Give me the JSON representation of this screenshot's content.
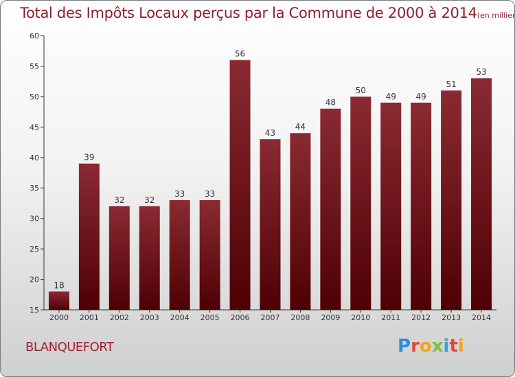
{
  "chart_data": {
    "type": "bar",
    "title": "Total des Impôts Locaux perçus par la Commune de 2000 à 2014",
    "title_unit": "(en milliers d'€)",
    "categories": [
      "2000",
      "2001",
      "2002",
      "2003",
      "2004",
      "2005",
      "2006",
      "2007",
      "2008",
      "2009",
      "2010",
      "2011",
      "2012",
      "2013",
      "2014"
    ],
    "values": [
      18,
      39,
      32,
      32,
      33,
      33,
      56,
      43,
      44,
      48,
      50,
      49,
      49,
      51,
      53
    ],
    "ylim": [
      15,
      60
    ],
    "yticks": [
      15,
      20,
      25,
      30,
      35,
      40,
      45,
      50,
      55,
      60
    ],
    "grid": false,
    "bar_color": "#7a1a22"
  },
  "commune": "BLANQUEFORT",
  "logo": {
    "letters": [
      "P",
      "r",
      "o",
      "x",
      "i",
      "t",
      "i"
    ]
  }
}
